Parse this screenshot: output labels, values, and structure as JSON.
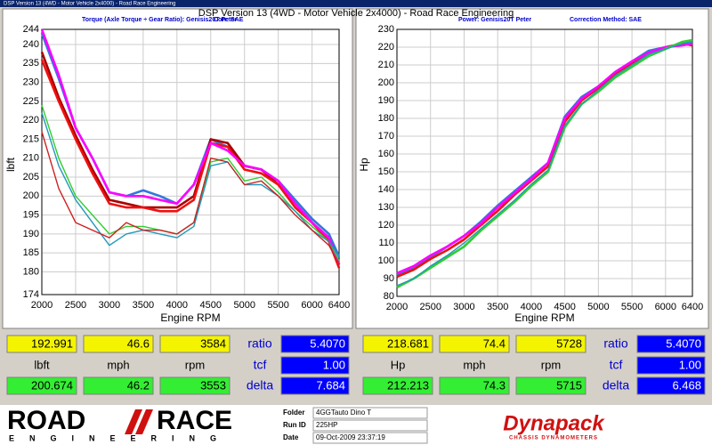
{
  "window_title": "DSP Version 13 (4WD - Motor Vehicle 2x4000) - Road Race Engineering",
  "header": "DSP Version 13 (4WD - Motor Vehicle 2x4000) - Road Race Engineering",
  "chart_data": [
    {
      "type": "line",
      "title": "Torque (Axle Torque ÷ Gear Ratio): Genisis20T Peter",
      "subtitle": "Corr: SAE",
      "xlabel": "Engine RPM",
      "ylabel": "lbft",
      "grid": true,
      "xlim": [
        2000,
        6400
      ],
      "ylim": [
        174,
        244
      ],
      "xticks": [
        2000,
        2500,
        3000,
        3500,
        4000,
        4500,
        5000,
        5500,
        6000,
        6400
      ],
      "yticks": [
        174,
        180,
        185,
        190,
        195,
        200,
        205,
        210,
        215,
        220,
        225,
        230,
        235,
        240,
        244
      ],
      "x": [
        2000,
        2250,
        2500,
        2750,
        3000,
        3250,
        3500,
        3750,
        4000,
        4250,
        4500,
        4750,
        5000,
        5250,
        5500,
        5750,
        6000,
        6250,
        6400
      ],
      "series": [
        {
          "color": "#3377dd",
          "values": [
            243,
            231,
            218,
            210,
            201,
            200,
            201.5,
            200,
            198,
            203,
            215,
            213,
            208,
            207,
            204,
            199,
            194,
            190,
            184
          ]
        },
        {
          "color": "#aa0000",
          "values": [
            238,
            226,
            216,
            207,
            199,
            198,
            197,
            197,
            197,
            200,
            215,
            214,
            208,
            207,
            203,
            198,
            193,
            189,
            182
          ]
        },
        {
          "color": "#ee1111",
          "values": [
            236,
            225,
            215,
            206,
            198,
            197,
            197,
            196,
            196,
            199,
            214,
            213,
            207,
            206,
            203,
            197,
            193,
            188,
            181
          ]
        },
        {
          "color": "#ff00ff",
          "values": [
            244,
            232,
            218,
            210,
            201,
            200,
            200,
            199,
            198,
            203,
            214,
            212,
            208,
            207,
            204,
            198,
            193,
            189,
            182
          ]
        },
        {
          "color": "#33cc33",
          "values": [
            224,
            210,
            200,
            195,
            190,
            192,
            192,
            191,
            190,
            193,
            209,
            210,
            204,
            205,
            201,
            196,
            192,
            188,
            183
          ]
        },
        {
          "color": "#2299bb",
          "values": [
            222,
            208,
            199,
            193,
            187,
            190,
            191,
            190,
            189,
            192,
            208,
            209,
            203,
            203,
            200,
            196,
            191,
            188,
            184
          ]
        },
        {
          "color": "#cc2222",
          "values": [
            217,
            202,
            193,
            191,
            189,
            193,
            191,
            191,
            190,
            193,
            210,
            209,
            203,
            204,
            200,
            195,
            191,
            187,
            182
          ]
        }
      ]
    },
    {
      "type": "line",
      "title": "Power: Genisis20T Peter",
      "subtitle": "Correction Method: SAE",
      "xlabel": "Engine RPM",
      "ylabel": "Hp",
      "grid": true,
      "xlim": [
        2000,
        6400
      ],
      "ylim": [
        80,
        230
      ],
      "xticks": [
        2000,
        2500,
        3000,
        3500,
        4000,
        4500,
        5000,
        5500,
        6000,
        6400
      ],
      "yticks": [
        80,
        90,
        100,
        110,
        120,
        130,
        140,
        150,
        160,
        170,
        180,
        190,
        200,
        210,
        220,
        230
      ],
      "x": [
        2000,
        2250,
        2500,
        2750,
        3000,
        3250,
        3500,
        3750,
        4000,
        4250,
        4500,
        4750,
        5000,
        5250,
        5500,
        5750,
        6000,
        6250,
        6400
      ],
      "series": [
        {
          "color": "#3377dd",
          "values": [
            92,
            96,
            102,
            108,
            114,
            122,
            131,
            139,
            147,
            155,
            181,
            192,
            198,
            206,
            212,
            218,
            220,
            222,
            223
          ]
        },
        {
          "color": "#ee1111",
          "values": [
            91,
            95,
            101,
            106,
            112,
            120,
            128,
            137,
            145,
            153,
            178,
            190,
            197,
            205,
            211,
            216,
            220,
            222,
            221
          ]
        },
        {
          "color": "#ff00ff",
          "values": [
            93,
            97,
            103,
            108,
            114,
            121,
            130,
            138,
            146,
            155,
            180,
            191,
            198,
            206,
            212,
            217,
            220,
            221,
            222
          ]
        },
        {
          "color": "#33cc33",
          "values": [
            85,
            90,
            96,
            102,
            108,
            117,
            125,
            133,
            142,
            150,
            175,
            188,
            195,
            203,
            209,
            215,
            219,
            223,
            224
          ]
        },
        {
          "color": "#2299bb",
          "values": [
            86,
            90,
            97,
            103,
            110,
            118,
            126,
            134,
            143,
            151,
            176,
            188,
            196,
            204,
            210,
            216,
            219,
            222,
            223
          ]
        }
      ]
    }
  ],
  "readouts": [
    {
      "top": [
        "192.991",
        "46.6",
        "3584"
      ],
      "units": [
        "lbft",
        "mph",
        "rpm"
      ],
      "bottom": [
        "200.674",
        "46.2",
        "3553"
      ],
      "side_labels": [
        "ratio",
        "tcf",
        "delta"
      ],
      "side_values": [
        "5.4070",
        "1.00",
        "7.684"
      ]
    },
    {
      "top": [
        "218.681",
        "74.4",
        "5728"
      ],
      "units": [
        "Hp",
        "mph",
        "rpm"
      ],
      "bottom": [
        "212.213",
        "74.3",
        "5715"
      ],
      "side_labels": [
        "ratio",
        "tcf",
        "delta"
      ],
      "side_values": [
        "5.4070",
        "1.00",
        "6.468"
      ]
    }
  ],
  "footer": {
    "logo_left": "ROAD",
    "logo_right": "RACE",
    "logo_sub": "ENGINEERING",
    "fields": [
      {
        "label": "Folder",
        "value": "4GGTauto Dino T"
      },
      {
        "label": "Run ID",
        "value": "225HP"
      },
      {
        "label": "Date",
        "value": "09-Oct-2009  23:37:19"
      }
    ],
    "brand": "Dynapack",
    "brand_sub": "CHASSIS DYNAMOMETERS"
  }
}
